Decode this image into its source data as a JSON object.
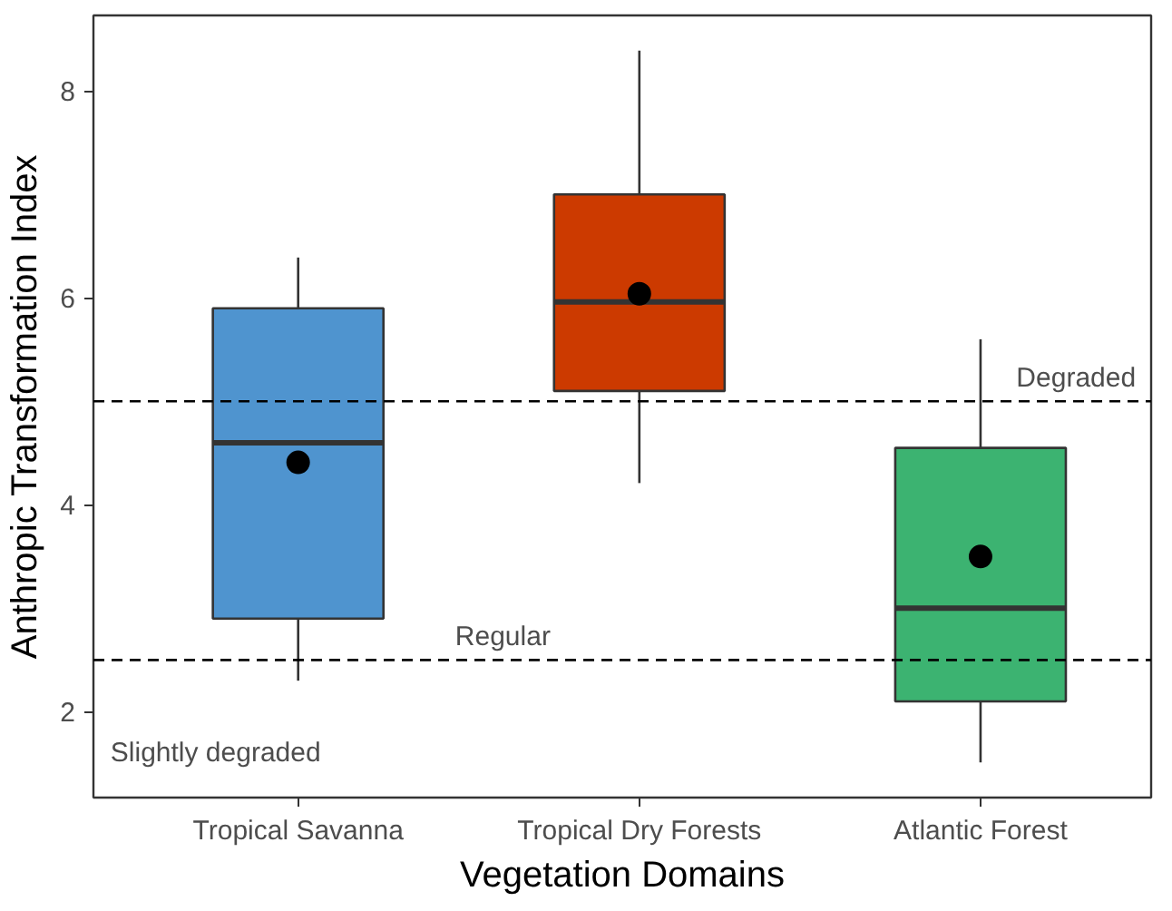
{
  "chart_data": {
    "type": "box",
    "xlabel": "Vegetation Domains",
    "ylabel": "Anthropic Transformation Index",
    "categories": [
      "Tropical Savanna",
      "Tropical Dry Forests",
      "Atlantic Forest"
    ],
    "colors": [
      "#4f94cf",
      "#cc3a00",
      "#3cb371"
    ],
    "boxes": [
      {
        "low": 2.3,
        "q1": 2.9,
        "median": 4.6,
        "q3": 5.9,
        "high": 6.39,
        "mean": 4.41
      },
      {
        "low": 4.21,
        "q1": 5.1,
        "median": 5.96,
        "q3": 7.0,
        "high": 8.39,
        "mean": 6.04
      },
      {
        "low": 1.51,
        "q1": 2.1,
        "median": 3.0,
        "q3": 4.55,
        "high": 5.6,
        "mean": 3.5
      }
    ],
    "ylim": [
      1.17,
      8.73
    ],
    "yticks": [
      2,
      4,
      6,
      8
    ],
    "grid": false,
    "ref_lines": [
      {
        "axis": "y",
        "value": 5,
        "label": "Degraded",
        "line_style": "dashed"
      },
      {
        "axis": "y",
        "value": 2.5,
        "label": "Regular",
        "line_style": "dashed"
      }
    ],
    "annotations": [
      "Slightly degraded"
    ]
  }
}
